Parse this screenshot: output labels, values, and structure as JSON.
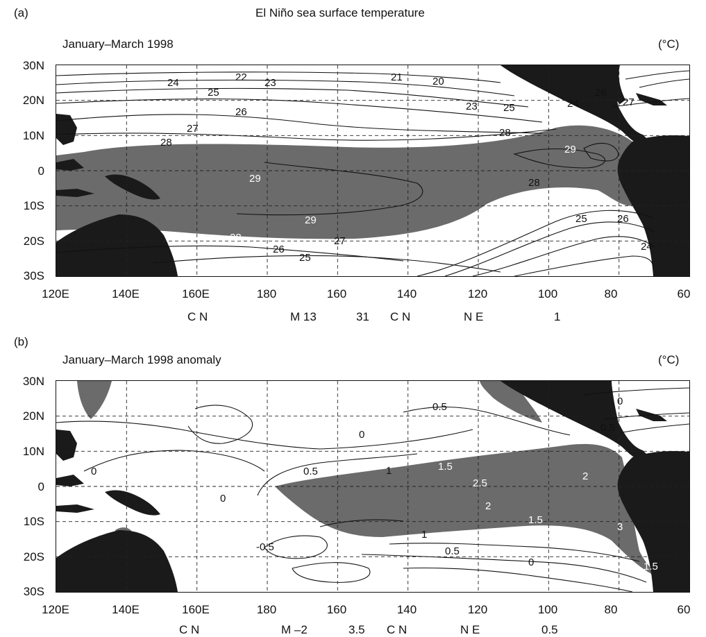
{
  "title": "El Niño sea surface temperature",
  "panels": [
    {
      "id": "a",
      "tag": "(a)",
      "subtitle": "January–March 1998",
      "unit": "(°C)",
      "y_ticks": [
        "30N",
        "20N",
        "10N",
        "0",
        "10S",
        "20S",
        "30S"
      ],
      "x_ticks": [
        "120E",
        "140E",
        "160E",
        "180",
        "160",
        "140",
        "120",
        "100",
        "80",
        "60"
      ],
      "contour_labels": [
        "22",
        "24",
        "23",
        "25",
        "21",
        "20",
        "26",
        "23",
        "25",
        "27",
        "28",
        "29",
        "28",
        "29",
        "28",
        "26",
        "25",
        "27",
        "25",
        "26",
        "24",
        "28",
        "26",
        "24",
        "27",
        "29"
      ],
      "legend": [
        "C N",
        "M 13",
        "31",
        "C N",
        "N E",
        "1"
      ]
    },
    {
      "id": "b",
      "tag": "(b)",
      "subtitle": "January–March 1998 anomaly",
      "unit": "(°C)",
      "y_ticks": [
        "30N",
        "20N",
        "10N",
        "0",
        "10S",
        "20S",
        "30S"
      ],
      "x_ticks": [
        "120E",
        "140E",
        "160E",
        "180",
        "160",
        "140",
        "120",
        "100",
        "80",
        "60"
      ],
      "contour_labels": [
        "0.5",
        "0",
        "0",
        "0",
        "0.5",
        "1",
        "1.5",
        "2.5",
        "2",
        "2",
        "1.5",
        "3",
        "1.5",
        "1",
        "0.5",
        "0",
        "-0.5",
        "0.5",
        "0"
      ],
      "legend": [
        "C N",
        "M –2",
        "3.5",
        "C N",
        "N E",
        "0.5"
      ]
    }
  ],
  "colors": {
    "shade": "#6b6b6b",
    "land": "#1a1a1a",
    "line": "#111111",
    "grid": "#222222"
  }
}
